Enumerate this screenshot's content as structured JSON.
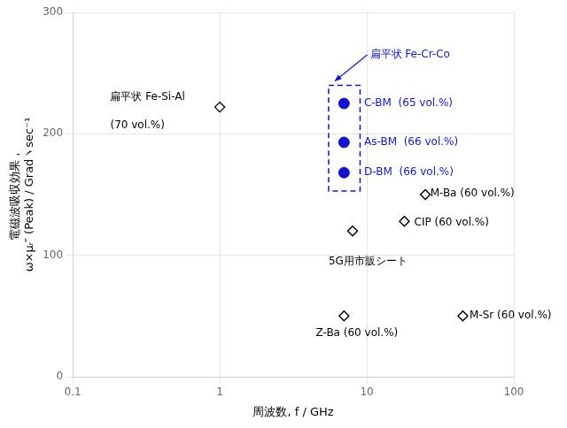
{
  "chart_data": {
    "type": "scatter",
    "xlabel": "周波数, f / GHz",
    "ylabel": [
      "電磁波吸収効果，",
      "ω×μᵣ″ (Peak) / Gradヽsec⁻¹"
    ],
    "log": "x",
    "xlim": [
      0.1,
      100
    ],
    "ylim": [
      0,
      300
    ],
    "xticks": [
      0.1,
      1,
      10,
      100
    ],
    "yticks": [
      0,
      100,
      200,
      300
    ],
    "grid": true,
    "series": [
      {
        "color": "#1414CC",
        "marker": "circle",
        "x": [
          7.0,
          7.0,
          7.0
        ],
        "values": [
          225,
          193,
          168
        ]
      },
      {
        "color": "#000000",
        "marker": "diamond",
        "x": [
          1.0,
          8.0,
          7.0,
          25.0,
          18.0,
          45.0
        ],
        "values": [
          222,
          120,
          50,
          150,
          128,
          50
        ]
      }
    ],
    "annotations": [
      {
        "text": "C-BM  (65 vol.%)",
        "x": 9.6,
        "y": 225,
        "color": "#1414CC"
      },
      {
        "text": "As-BM  (66 vol.%)",
        "x": 9.6,
        "y": 193,
        "color": "#1414CC"
      },
      {
        "text": "D-BM  (66 vol.%)",
        "x": 9.6,
        "y": 168,
        "color": "#1414CC"
      },
      {
        "text": "扁平状 Fe-Si-Al",
        "x": 0.18,
        "y": 230,
        "color": "#000000"
      },
      {
        "text": "(70 vol.%)",
        "x": 0.18,
        "y": 207,
        "color": "#000000"
      },
      {
        "text": "5G用市販シート",
        "x": 5.5,
        "y": 95,
        "color": "#000000"
      },
      {
        "text": "Z-Ba (60 vol.%)",
        "x": 4.5,
        "y": 36,
        "color": "#000000"
      },
      {
        "text": "M-Ba (60 vol.%)",
        "x": 27,
        "y": 151,
        "color": "#000000"
      },
      {
        "text": "CIP (60 vol.%)",
        "x": 21,
        "y": 127,
        "color": "#000000"
      },
      {
        "text": "M-Sr (60 vol.%)",
        "x": 50,
        "y": 50,
        "color": "#000000"
      },
      {
        "text": "扁平状 Fe-Cr-Co",
        "x": 10.5,
        "y": 265,
        "color": "#1414CC",
        "arrow_to": {
          "x": 6.0,
          "y": 243
        }
      }
    ],
    "boxes": [
      {
        "x": [
          5.5,
          9.0
        ],
        "y": [
          153,
          240
        ],
        "color": "#1414CC",
        "line_style": "dashed"
      }
    ]
  }
}
